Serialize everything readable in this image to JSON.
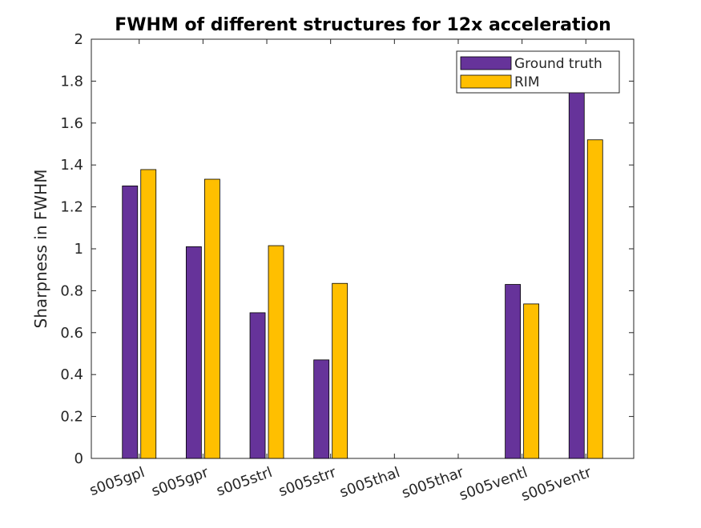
{
  "chart_data": {
    "type": "bar",
    "title": "FWHM of different structures for 12x acceleration",
    "xlabel": "",
    "ylabel": "Sharpness in FWHM",
    "ylim": [
      0,
      2
    ],
    "yticks": [
      "0",
      "0.2",
      "0.4",
      "0.6",
      "0.8",
      "1",
      "1.2",
      "1.4",
      "1.6",
      "1.8",
      "2"
    ],
    "categories": [
      "s005gpl",
      "s005gpr",
      "s005strl",
      "s005strr",
      "s005thal",
      "s005thar",
      "s005ventl",
      "s005ventr"
    ],
    "series": [
      {
        "name": "Ground truth",
        "color": "#66339a",
        "values": [
          1.3,
          1.01,
          0.695,
          0.47,
          0,
          0,
          0.83,
          1.75
        ]
      },
      {
        "name": "RIM",
        "color": "#ffbf00",
        "values": [
          1.378,
          1.332,
          1.015,
          0.835,
          0,
          0,
          0.737,
          1.52
        ]
      }
    ],
    "legend_position": "top-right",
    "grid": false
  }
}
